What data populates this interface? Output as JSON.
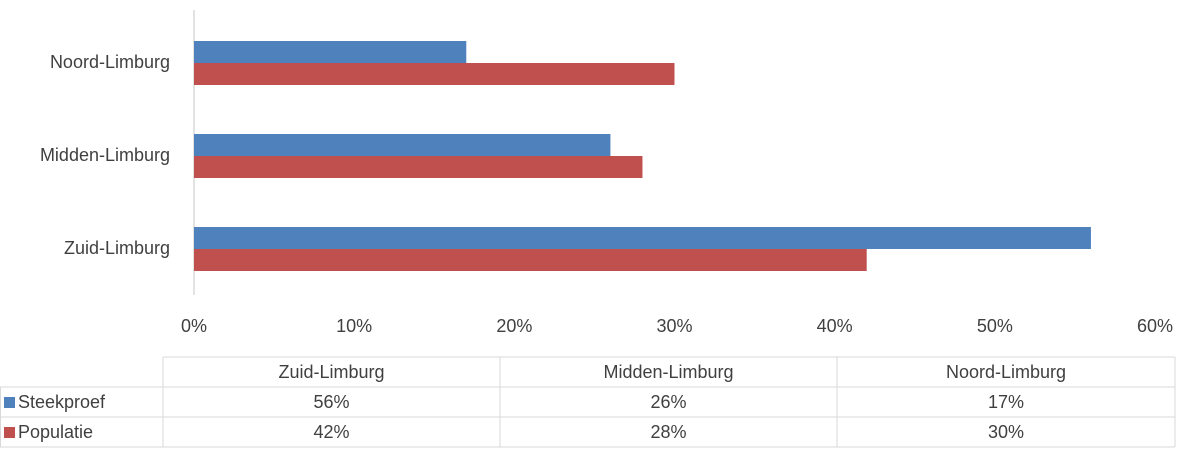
{
  "chart_data": {
    "type": "bar",
    "orientation": "horizontal",
    "categories": [
      "Zuid-Limburg",
      "Midden-Limburg",
      "Noord-Limburg"
    ],
    "series": [
      {
        "name": "Steekproef",
        "color": "#4f81bd",
        "values": [
          56,
          26,
          17
        ],
        "value_labels": [
          "56%",
          "26%",
          "17%"
        ]
      },
      {
        "name": "Populatie",
        "color": "#c0504d",
        "values": [
          42,
          28,
          30
        ],
        "value_labels": [
          "42%",
          "28%",
          "30%"
        ]
      }
    ],
    "xlim": [
      0,
      60
    ],
    "xticks": [
      {
        "value": 0,
        "label": "0%"
      },
      {
        "value": 10,
        "label": "10%"
      },
      {
        "value": 20,
        "label": "20%"
      },
      {
        "value": 30,
        "label": "30%"
      },
      {
        "value": 40,
        "label": "40%"
      },
      {
        "value": 50,
        "label": "50%"
      },
      {
        "value": 60,
        "label": "60%"
      }
    ],
    "data_table": true
  }
}
